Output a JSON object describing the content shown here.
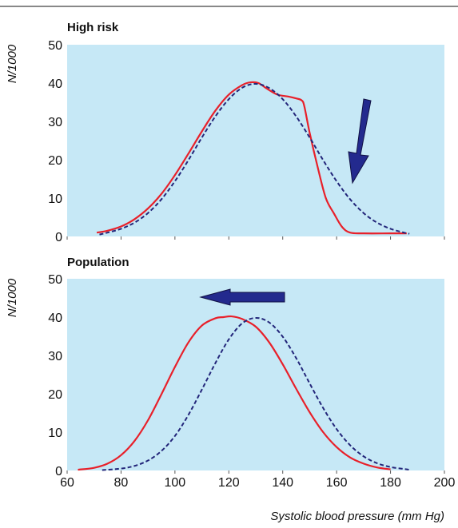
{
  "chart_data": [
    {
      "type": "line",
      "title": "High risk",
      "ylabel": "N/1000",
      "xlim": [
        60,
        200
      ],
      "ylim": [
        0,
        50
      ],
      "yticks": [
        0,
        10,
        20,
        30,
        40,
        50
      ],
      "grid": false,
      "background_color": "#c6e8f6",
      "series": [
        {
          "style": "solid",
          "color": "#e8202a",
          "points": [
            [
              71,
              1
            ],
            [
              75,
              1.5
            ],
            [
              80,
              2.6
            ],
            [
              85,
              4.5
            ],
            [
              90,
              7.3
            ],
            [
              95,
              11.1
            ],
            [
              100,
              16
            ],
            [
              105,
              21.6
            ],
            [
              110,
              27.4
            ],
            [
              115,
              32.8
            ],
            [
              120,
              37
            ],
            [
              125,
              39.5
            ],
            [
              128,
              40.2
            ],
            [
              131,
              40
            ],
            [
              134,
              38.6
            ],
            [
              138,
              37
            ],
            [
              142,
              36.5
            ],
            [
              145,
              36
            ],
            [
              147,
              35.5
            ],
            [
              148,
              34
            ],
            [
              150,
              27
            ],
            [
              153,
              18
            ],
            [
              156,
              10
            ],
            [
              159,
              6
            ],
            [
              162,
              2.5
            ],
            [
              165,
              1
            ],
            [
              170,
              0.8
            ],
            [
              180,
              0.8
            ],
            [
              186,
              0.8
            ]
          ]
        },
        {
          "style": "dashed",
          "color": "#23267a",
          "points": [
            [
              72,
              0.5
            ],
            [
              75,
              1
            ],
            [
              80,
              2
            ],
            [
              85,
              3.6
            ],
            [
              90,
              6.1
            ],
            [
              95,
              9.7
            ],
            [
              100,
              14.4
            ],
            [
              105,
              19.9
            ],
            [
              110,
              25.8
            ],
            [
              115,
              31.3
            ],
            [
              120,
              35.8
            ],
            [
              125,
              38.8
            ],
            [
              130,
              39.8
            ],
            [
              135,
              38.7
            ],
            [
              140,
              35.8
            ],
            [
              145,
              31.3
            ],
            [
              150,
              25.8
            ],
            [
              155,
              19.9
            ],
            [
              160,
              14.4
            ],
            [
              165,
              9.7
            ],
            [
              170,
              6.1
            ],
            [
              175,
              3.6
            ],
            [
              180,
              2
            ],
            [
              185,
              1
            ],
            [
              187,
              0.7
            ]
          ]
        }
      ],
      "arrow": {
        "direction": "down-left",
        "color": "#232a8e"
      }
    },
    {
      "type": "line",
      "title": "Population",
      "ylabel": "N/1000",
      "xlabel": "Systolic blood pressure (mm Hg)",
      "xlim": [
        60,
        200
      ],
      "ylim": [
        0,
        50
      ],
      "xticks": [
        60,
        80,
        100,
        120,
        140,
        160,
        180,
        200
      ],
      "yticks": [
        0,
        10,
        20,
        30,
        40,
        50
      ],
      "grid": false,
      "background_color": "#c6e8f6",
      "series": [
        {
          "style": "solid",
          "color": "#e8202a",
          "points": [
            [
              64,
              0.2
            ],
            [
              70,
              0.7
            ],
            [
              75,
              1.8
            ],
            [
              80,
              4
            ],
            [
              85,
              7.7
            ],
            [
              90,
              13.1
            ],
            [
              95,
              19.9
            ],
            [
              100,
              27
            ],
            [
              105,
              33.4
            ],
            [
              110,
              37.8
            ],
            [
              115,
              39.7
            ],
            [
              118,
              40
            ],
            [
              121,
              40.2
            ],
            [
              125,
              39.5
            ],
            [
              130,
              37.5
            ],
            [
              135,
              33.4
            ],
            [
              140,
              27.7
            ],
            [
              145,
              21.3
            ],
            [
              150,
              15.2
            ],
            [
              155,
              10
            ],
            [
              160,
              6.1
            ],
            [
              165,
              3.4
            ],
            [
              170,
              1.8
            ],
            [
              175,
              0.8
            ],
            [
              180,
              0.3
            ]
          ]
        },
        {
          "style": "dashed",
          "color": "#23267a",
          "points": [
            [
              73,
              0.1
            ],
            [
              80,
              0.5
            ],
            [
              85,
              1.2
            ],
            [
              90,
              2.6
            ],
            [
              95,
              5.1
            ],
            [
              100,
              9
            ],
            [
              105,
              14.5
            ],
            [
              110,
              21.1
            ],
            [
              115,
              28
            ],
            [
              120,
              34.2
            ],
            [
              125,
              38.4
            ],
            [
              130,
              39.8
            ],
            [
              135,
              38.6
            ],
            [
              140,
              34.9
            ],
            [
              145,
              29.3
            ],
            [
              150,
              22.7
            ],
            [
              155,
              16.3
            ],
            [
              160,
              10.8
            ],
            [
              165,
              6.6
            ],
            [
              170,
              3.7
            ],
            [
              175,
              1.9
            ],
            [
              180,
              0.9
            ],
            [
              185,
              0.4
            ],
            [
              187,
              0.2
            ]
          ]
        }
      ],
      "arrow": {
        "direction": "left",
        "color": "#232a8e"
      }
    }
  ]
}
